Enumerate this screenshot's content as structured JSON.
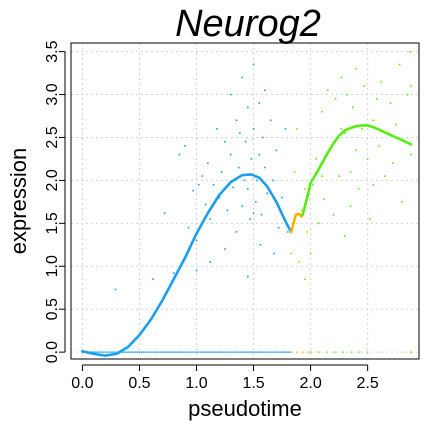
{
  "chart_data": {
    "type": "scatter",
    "title": "Neurog2",
    "xlabel": "pseudotime",
    "ylabel": "expression",
    "xlim": [
      -0.1,
      2.95
    ],
    "ylim": [
      -0.08,
      3.6
    ],
    "xticks": [
      0.0,
      0.5,
      1.0,
      1.5,
      2.0,
      2.5
    ],
    "xtick_labels": [
      "0.0",
      "0.5",
      "1.0",
      "1.5",
      "2.0",
      "2.5"
    ],
    "yticks": [
      0.0,
      0.5,
      1.0,
      1.5,
      2.0,
      2.5,
      3.0,
      3.5
    ],
    "ytick_labels": [
      "0.0",
      "0.5",
      "1.0",
      "1.5",
      "2.0",
      "2.5",
      "3.0",
      "3.5"
    ],
    "grid": true,
    "colors": {
      "branch_blue": "#1a9ff0",
      "branch_orange": "#f5b400",
      "branch_green": "#55ee11",
      "grid": "#d3d3d3"
    },
    "series": [
      {
        "color": "#1a9ff0",
        "points": [
          [
            0.29,
            0.73
          ],
          [
            0.62,
            0.85
          ],
          [
            0.72,
            1.62
          ],
          [
            0.8,
            0.92
          ],
          [
            0.85,
            2.3
          ],
          [
            0.9,
            2.4
          ],
          [
            0.93,
            1.45
          ],
          [
            0.97,
            1.88
          ],
          [
            1.0,
            1.3
          ],
          [
            1.02,
            1.95
          ],
          [
            1.05,
            2.05
          ],
          [
            1.08,
            1.72
          ],
          [
            1.1,
            2.2
          ],
          [
            1.12,
            1.55
          ],
          [
            1.15,
            1.95
          ],
          [
            1.18,
            2.6
          ],
          [
            1.2,
            1.8
          ],
          [
            1.22,
            2.1
          ],
          [
            1.25,
            2.45
          ],
          [
            1.27,
            1.65
          ],
          [
            1.3,
            2.3
          ],
          [
            1.3,
            3.0
          ],
          [
            1.32,
            1.92
          ],
          [
            1.35,
            2.7
          ],
          [
            1.35,
            1.4
          ],
          [
            1.37,
            2.15
          ],
          [
            1.38,
            2.55
          ],
          [
            1.4,
            1.7
          ],
          [
            1.4,
            3.2
          ],
          [
            1.42,
            2.0
          ],
          [
            1.43,
            2.45
          ],
          [
            1.45,
            1.9
          ],
          [
            1.45,
            2.85
          ],
          [
            1.47,
            1.55
          ],
          [
            1.48,
            2.25
          ],
          [
            1.5,
            3.35
          ],
          [
            1.5,
            2.6
          ],
          [
            1.52,
            1.75
          ],
          [
            1.53,
            2.0
          ],
          [
            1.55,
            2.9
          ],
          [
            1.55,
            2.3
          ],
          [
            1.57,
            1.6
          ],
          [
            1.58,
            2.5
          ],
          [
            1.6,
            2.15
          ],
          [
            1.6,
            3.05
          ],
          [
            1.62,
            1.85
          ],
          [
            1.65,
            2.7
          ],
          [
            1.67,
            2.0
          ],
          [
            1.7,
            2.35
          ],
          [
            1.72,
            1.45
          ],
          [
            1.75,
            1.8
          ],
          [
            1.78,
            2.6
          ],
          [
            1.8,
            1.4
          ],
          [
            1.45,
            0.88
          ],
          [
            1.25,
            1.2
          ],
          [
            1.0,
            0.95
          ],
          [
            1.12,
            1.05
          ],
          [
            1.5,
            1.62
          ],
          [
            1.56,
            1.25
          ],
          [
            1.68,
            1.15
          ]
        ]
      },
      {
        "color": "#f5b400",
        "points": [
          [
            1.83,
            1.15
          ],
          [
            1.86,
            2.1
          ],
          [
            1.88,
            2.6
          ],
          [
            1.9,
            1.05
          ],
          [
            1.92,
            1.65
          ],
          [
            1.95,
            0.85
          ],
          [
            1.97,
            1.4
          ],
          [
            1.95,
            1.9
          ]
        ]
      },
      {
        "color": "#55ee11",
        "points": [
          [
            2.0,
            1.15
          ],
          [
            2.02,
            1.95
          ],
          [
            2.05,
            2.25
          ],
          [
            2.07,
            1.5
          ],
          [
            2.1,
            2.8
          ],
          [
            2.12,
            1.78
          ],
          [
            2.15,
            3.05
          ],
          [
            2.17,
            2.35
          ],
          [
            2.2,
            1.6
          ],
          [
            2.22,
            2.95
          ],
          [
            2.25,
            2.05
          ],
          [
            2.27,
            3.2
          ],
          [
            2.3,
            2.55
          ],
          [
            2.3,
            1.35
          ],
          [
            2.32,
            3.0
          ],
          [
            2.35,
            2.1
          ],
          [
            2.37,
            2.85
          ],
          [
            2.4,
            3.3
          ],
          [
            2.4,
            2.35
          ],
          [
            2.42,
            1.9
          ],
          [
            2.45,
            2.6
          ],
          [
            2.47,
            3.1
          ],
          [
            2.5,
            2.25
          ],
          [
            2.52,
            1.55
          ],
          [
            2.55,
            2.7
          ],
          [
            2.58,
            2.95
          ],
          [
            2.6,
            2.4
          ],
          [
            2.62,
            3.15
          ],
          [
            2.65,
            2.05
          ],
          [
            2.68,
            2.55
          ],
          [
            2.7,
            2.9
          ],
          [
            2.72,
            2.2
          ],
          [
            2.75,
            2.65
          ],
          [
            2.78,
            3.35
          ],
          [
            2.8,
            1.75
          ],
          [
            2.82,
            2.45
          ],
          [
            2.85,
            3.0
          ],
          [
            2.87,
            3.5
          ],
          [
            2.88,
            3.1
          ],
          [
            2.88,
            2.3
          ],
          [
            2.1,
            2.05
          ],
          [
            2.27,
            2.6
          ],
          [
            2.35,
            1.7
          ],
          [
            2.55,
            1.95
          ],
          [
            2.88,
            0.0
          ]
        ]
      }
    ],
    "zero_rows": [
      {
        "color": "#1a9ff0",
        "x_from": 0.0,
        "x_to": 1.82,
        "count": 110
      },
      {
        "color": "#f5b400",
        "x_from": 1.83,
        "x_to": 1.98,
        "count": 4
      },
      {
        "color": "#55ee11",
        "x_from": 2.0,
        "x_to": 2.5,
        "count": 8
      }
    ],
    "smooth_lines": [
      {
        "color": "#1a9ff0",
        "points": [
          [
            0.0,
            0.01
          ],
          [
            0.1,
            -0.02
          ],
          [
            0.2,
            -0.04
          ],
          [
            0.3,
            -0.02
          ],
          [
            0.4,
            0.06
          ],
          [
            0.5,
            0.2
          ],
          [
            0.6,
            0.38
          ],
          [
            0.7,
            0.6
          ],
          [
            0.8,
            0.85
          ],
          [
            0.9,
            1.1
          ],
          [
            1.0,
            1.38
          ],
          [
            1.1,
            1.62
          ],
          [
            1.2,
            1.83
          ],
          [
            1.3,
            1.98
          ],
          [
            1.4,
            2.06
          ],
          [
            1.48,
            2.07
          ],
          [
            1.55,
            2.03
          ],
          [
            1.62,
            1.93
          ],
          [
            1.7,
            1.75
          ],
          [
            1.76,
            1.58
          ],
          [
            1.8,
            1.47
          ],
          [
            1.83,
            1.4
          ]
        ]
      },
      {
        "color": "#f5b400",
        "points": [
          [
            1.83,
            1.4
          ],
          [
            1.85,
            1.5
          ],
          [
            1.87,
            1.6
          ],
          [
            1.9,
            1.61
          ],
          [
            1.92,
            1.58
          ],
          [
            1.93,
            1.6
          ]
        ]
      },
      {
        "color": "#55ee11",
        "points": [
          [
            1.93,
            1.6
          ],
          [
            1.97,
            1.8
          ],
          [
            2.0,
            1.97
          ],
          [
            2.05,
            2.08
          ],
          [
            2.1,
            2.2
          ],
          [
            2.15,
            2.32
          ],
          [
            2.2,
            2.43
          ],
          [
            2.25,
            2.52
          ],
          [
            2.3,
            2.58
          ],
          [
            2.35,
            2.61
          ],
          [
            2.4,
            2.63
          ],
          [
            2.45,
            2.64
          ],
          [
            2.5,
            2.64
          ],
          [
            2.55,
            2.62
          ],
          [
            2.6,
            2.59
          ],
          [
            2.7,
            2.53
          ],
          [
            2.8,
            2.47
          ],
          [
            2.88,
            2.42
          ]
        ]
      }
    ]
  }
}
